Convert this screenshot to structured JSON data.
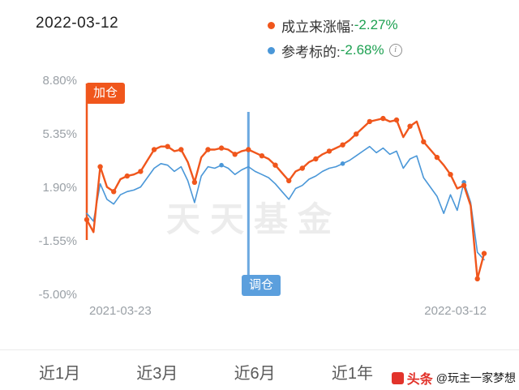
{
  "header": {
    "date": "2022-03-12",
    "legend": [
      {
        "label": "成立来涨幅:",
        "value": "-2.27%",
        "color": "#f0561c"
      },
      {
        "label": "参考标的:",
        "value": "-2.68%",
        "color": "#4a97d8"
      }
    ]
  },
  "icons": {
    "info": "i"
  },
  "chart_data": {
    "type": "line",
    "title": "",
    "watermark": "天天基金",
    "ylim": [
      -5.0,
      8.8
    ],
    "y_tick_labels": [
      "8.80%",
      "5.35%",
      "1.90%",
      "-1.55%",
      "-5.00%"
    ],
    "y_tick_values": [
      8.8,
      5.35,
      1.9,
      -1.55,
      -5.0
    ],
    "x_labels": [
      "2021-03-23",
      "2022-03-12"
    ],
    "grid": false,
    "legend_position": "top-right",
    "series": [
      {
        "name": "成立来涨幅",
        "color": "#f0561c",
        "final_value": "-2.27%",
        "line_width": 2.4,
        "marker_radius": 3.2,
        "values": [
          -0.1,
          -0.9,
          3.3,
          2.0,
          1.7,
          2.5,
          2.7,
          2.8,
          3.0,
          3.7,
          4.4,
          4.6,
          4.6,
          4.3,
          4.4,
          3.6,
          2.3,
          3.9,
          4.4,
          4.4,
          4.5,
          4.4,
          4.1,
          4.3,
          4.4,
          4.2,
          4.0,
          3.8,
          3.4,
          2.9,
          2.4,
          3.0,
          3.2,
          3.6,
          3.8,
          4.1,
          4.3,
          4.5,
          4.7,
          5.0,
          5.4,
          5.8,
          6.2,
          6.3,
          6.4,
          6.2,
          6.3,
          5.2,
          5.9,
          6.2,
          4.9,
          4.4,
          3.9,
          3.4,
          2.8,
          1.9,
          2.1,
          0.8,
          -3.9,
          -2.27
        ],
        "marker_indices": [
          0,
          2,
          4,
          6,
          8,
          10,
          12,
          14,
          16,
          18,
          20,
          22,
          24,
          26,
          28,
          30,
          32,
          34,
          36,
          38,
          40,
          42,
          44,
          46,
          48,
          50,
          52,
          54,
          56,
          58,
          59
        ]
      },
      {
        "name": "参考标的",
        "color": "#4a97d8",
        "final_value": "-2.68%",
        "line_width": 1.6,
        "marker_radius": 2.8,
        "values": [
          0.3,
          -0.2,
          2.2,
          1.2,
          0.9,
          1.5,
          1.7,
          1.8,
          2.0,
          2.6,
          3.2,
          3.5,
          3.4,
          3.0,
          3.3,
          2.4,
          1.0,
          2.7,
          3.3,
          3.2,
          3.4,
          3.2,
          2.8,
          3.1,
          3.3,
          3.0,
          2.8,
          2.6,
          2.2,
          1.7,
          1.2,
          1.9,
          2.1,
          2.5,
          2.7,
          3.0,
          3.2,
          3.3,
          3.5,
          3.7,
          4.0,
          4.3,
          4.6,
          4.2,
          4.5,
          4.1,
          4.3,
          3.2,
          3.8,
          4.0,
          2.6,
          2.0,
          1.4,
          0.3,
          1.5,
          0.5,
          2.3,
          1.0,
          -2.2,
          -2.68
        ],
        "marker_indices": [
          20,
          38,
          56
        ]
      }
    ],
    "annotations": [
      {
        "label": "加仓",
        "color": "#f0561c",
        "x_index": 0,
        "position": "top"
      },
      {
        "label": "调仓",
        "color": "#5b9fdd",
        "x_index": 24,
        "position": "bottom"
      }
    ]
  },
  "tabs": [
    "近1月",
    "近3月",
    "近6月",
    "近1年"
  ],
  "footer_watermark": {
    "brand": "头条",
    "handle": "@玩主一家梦想"
  }
}
